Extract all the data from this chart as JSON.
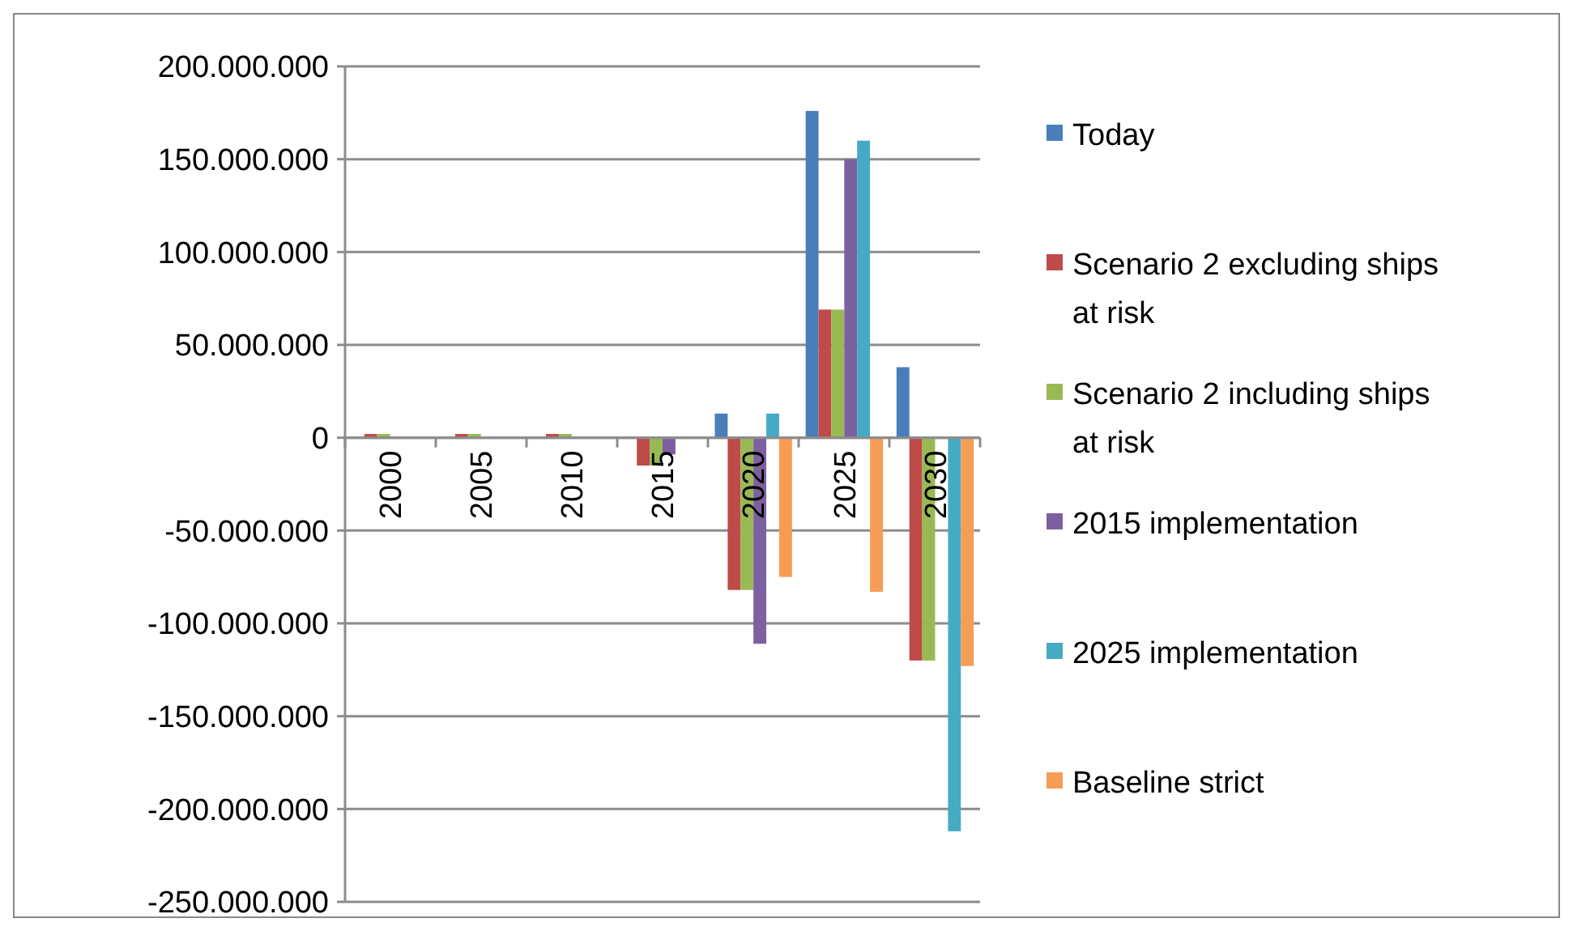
{
  "chart_data": {
    "type": "bar",
    "categories": [
      "2000",
      "2005",
      "2010",
      "2015",
      "2020",
      "2025",
      "2030"
    ],
    "series": [
      {
        "name": "Today",
        "color": "#4a7ebb",
        "values": [
          0,
          0,
          0,
          0,
          13000000,
          176000000,
          38000000
        ]
      },
      {
        "name": "Scenario 2 excluding ships at risk",
        "color": "#be4b48",
        "values": [
          2000000,
          2000000,
          2000000,
          -15000000,
          -82000000,
          69000000,
          -120000000
        ]
      },
      {
        "name": "Scenario 2 including ships at risk",
        "color": "#98b954",
        "values": [
          2000000,
          2000000,
          2000000,
          -15000000,
          -82000000,
          69000000,
          -120000000
        ]
      },
      {
        "name": "2015 implementation",
        "color": "#7d60a0",
        "values": [
          0,
          0,
          0,
          -9000000,
          -111000000,
          150000000,
          0
        ]
      },
      {
        "name": "2025 implementation",
        "color": "#46aac5",
        "values": [
          0,
          0,
          0,
          0,
          13000000,
          160000000,
          -212000000
        ]
      },
      {
        "name": "Baseline strict",
        "color": "#f59d56",
        "values": [
          0,
          0,
          0,
          0,
          -75000000,
          -83000000,
          -123000000
        ]
      }
    ],
    "ylim": [
      -250000000,
      200000000
    ],
    "yticks": [
      {
        "value": -250000000,
        "label": "-250.000.000"
      },
      {
        "value": -200000000,
        "label": "-200.000.000"
      },
      {
        "value": -150000000,
        "label": "-150.000.000"
      },
      {
        "value": -100000000,
        "label": "-100.000.000"
      },
      {
        "value": -50000000,
        "label": "-50.000.000"
      },
      {
        "value": 0,
        "label": "0"
      },
      {
        "value": 50000000,
        "label": "50.000.000"
      },
      {
        "value": 100000000,
        "label": "100.000.000"
      },
      {
        "value": 150000000,
        "label": "150.000.000"
      },
      {
        "value": 200000000,
        "label": "200.000.000"
      }
    ],
    "grid": "y",
    "legend": "right"
  }
}
